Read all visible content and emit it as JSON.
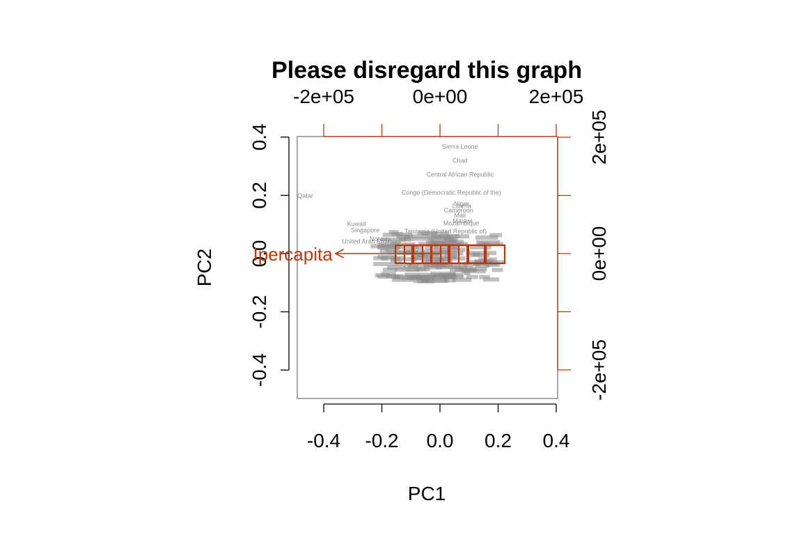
{
  "chart_data": {
    "type": "scatter",
    "subtype": "biplot",
    "title": "Please disregard this graph",
    "xlabel": "PC1",
    "ylabel": "PC2",
    "xlim": [
      -0.5,
      0.4
    ],
    "ylim": [
      -0.5,
      0.4
    ],
    "x_ticks": [
      "-0.4",
      "-0.2",
      "0.0",
      "0.2",
      "0.4"
    ],
    "y_ticks": [
      "-0.4",
      "-0.2",
      "0.0",
      "0.2",
      "0.4"
    ],
    "top_ticks": [
      "-2e+05",
      "0e+00",
      "2e+05"
    ],
    "right_ticks": [
      "-2e+05",
      "0e+00",
      "2e+05"
    ],
    "colors": {
      "points": "#8c8c8c",
      "arrows": "#c0360b",
      "axes": "#000000",
      "box": "#8c8c8c"
    },
    "points": [
      {
        "label": "Sierra Leone",
        "x": 0.069,
        "y": 0.367
      },
      {
        "label": "Chad",
        "x": 0.069,
        "y": 0.319
      },
      {
        "label": "Central African Republic",
        "x": 0.069,
        "y": 0.271
      },
      {
        "label": "Congo (Democratic Republic of the)",
        "x": 0.039,
        "y": 0.209
      },
      {
        "label": "Niger",
        "x": 0.075,
        "y": 0.171
      },
      {
        "label": "Liberia",
        "x": 0.075,
        "y": 0.164
      },
      {
        "label": "Cameroon",
        "x": 0.064,
        "y": 0.148
      },
      {
        "label": "Mali",
        "x": 0.069,
        "y": 0.132
      },
      {
        "label": "Malawi",
        "x": 0.078,
        "y": 0.112
      },
      {
        "label": "Mozambique",
        "x": 0.073,
        "y": 0.104
      },
      {
        "label": "Tanzania (United Republic of)",
        "x": 0.019,
        "y": 0.077
      },
      {
        "label": "Qatar",
        "x": -0.49,
        "y": 0.198
      },
      {
        "label": "Kuwait",
        "x": -0.287,
        "y": 0.102
      },
      {
        "label": "Singapore",
        "x": -0.257,
        "y": 0.08
      },
      {
        "label": "Norway",
        "x": -0.206,
        "y": 0.05
      },
      {
        "label": "United Arab Emirates",
        "x": -0.235,
        "y": 0.042
      }
    ],
    "arrows": [
      {
        "label": "Ipercapita",
        "x": -0.36,
        "y": 0.0
      }
    ]
  }
}
